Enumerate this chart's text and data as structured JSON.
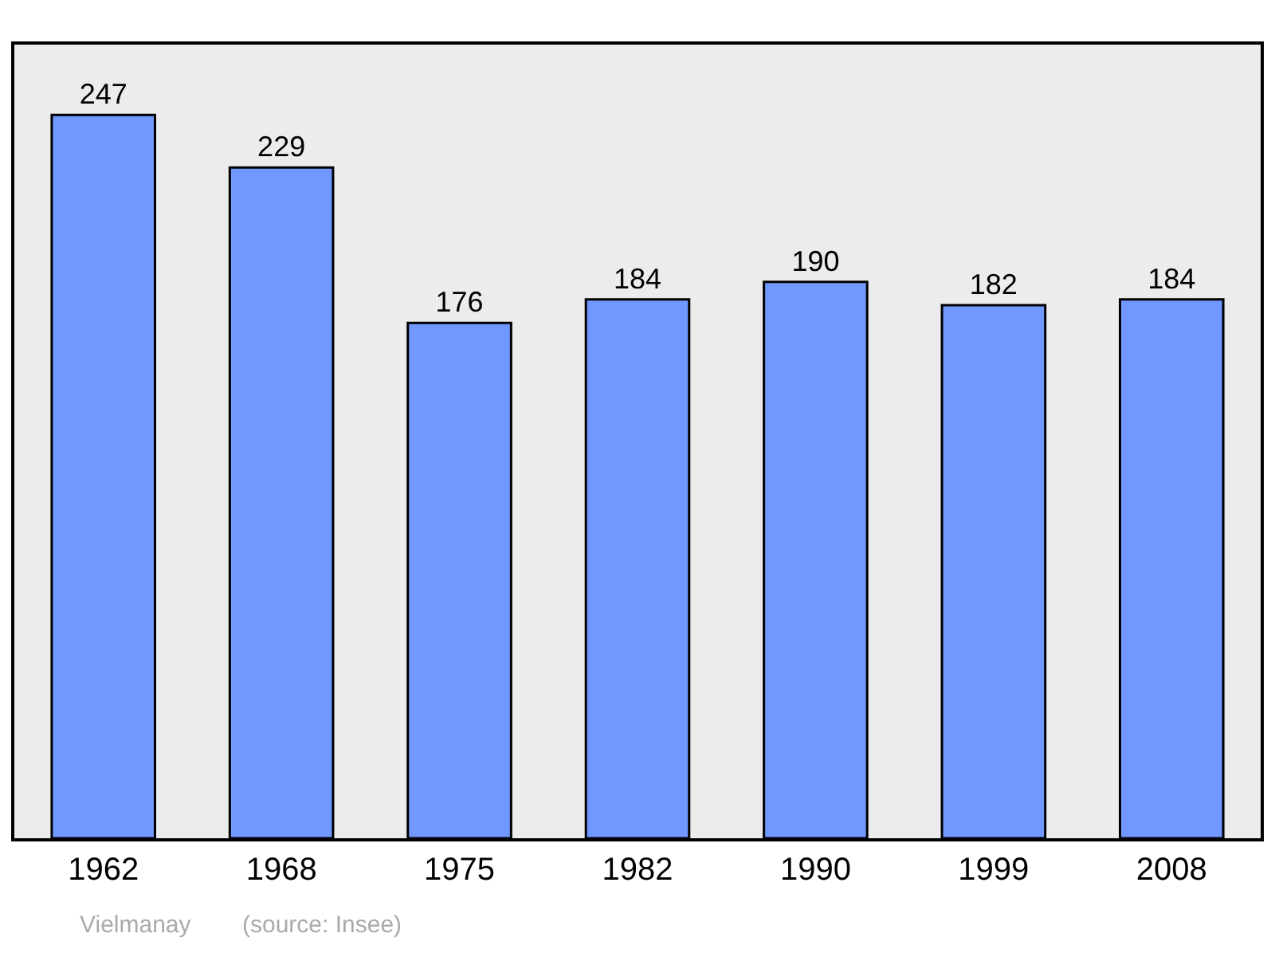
{
  "chart_data": {
    "type": "bar",
    "categories": [
      "1962",
      "1968",
      "1975",
      "1982",
      "1990",
      "1999",
      "2008"
    ],
    "values": [
      247,
      229,
      176,
      184,
      190,
      182,
      184
    ],
    "color": "#7098ff",
    "ylim": [
      0,
      271
    ],
    "data_labels": true,
    "grid": false,
    "tick_labels": "x",
    "annotations": [
      "Vielmanay",
      "(source: Insee)"
    ]
  }
}
